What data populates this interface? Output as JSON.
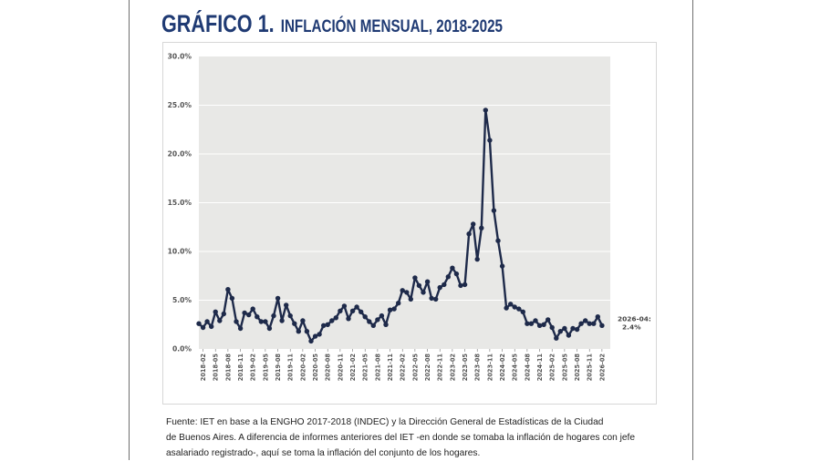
{
  "header": {
    "title_main": "GRÁFICO 1.",
    "title_sub": "INFLACIÓN MENSUAL, 2018-2025"
  },
  "colors": {
    "accent": "#1f3a73",
    "line": "#1e2a4a",
    "plot_background": "#e8e8e6",
    "grid": "#ffffff"
  },
  "chart_data": {
    "type": "line",
    "title": "INFLACIÓN MENSUAL, 2018-2025",
    "xlabel": "",
    "ylabel": "",
    "ylim": [
      0,
      30
    ],
    "y_ticks": [
      "0.0%",
      "5.0%",
      "10.0%",
      "15.0%",
      "20.0%",
      "25.0%",
      "30.0%"
    ],
    "y_tick_values": [
      0,
      5,
      10,
      15,
      20,
      25,
      30
    ],
    "grid": true,
    "x_tick_labels": [
      "2018-02",
      "2018-05",
      "2018-08",
      "2018-11",
      "2019-02",
      "2019-05",
      "2019-08",
      "2019-11",
      "2020-02",
      "2020-05",
      "2020-08",
      "2020-11",
      "2021-02",
      "2021-05",
      "2021-08",
      "2021-11",
      "2022-02",
      "2022-05",
      "2022-08",
      "2022-11",
      "2023-02",
      "2023-05",
      "2023-08",
      "2023-11",
      "2024-02",
      "2024-05",
      "2024-08",
      "2024-11",
      "2025-02",
      "2025-05",
      "2025-08",
      "2025-11",
      "2026-02"
    ],
    "x_start": "2018-01",
    "x_end": "2026-04",
    "series": [
      {
        "name": "",
        "values": [
          2.6,
          2.2,
          2.8,
          2.3,
          3.8,
          2.9,
          3.6,
          6.1,
          5.2,
          2.8,
          2.1,
          3.7,
          3.5,
          4.1,
          3.3,
          2.8,
          2.8,
          2.1,
          3.4,
          5.2,
          2.9,
          4.5,
          3.4,
          2.6,
          1.8,
          2.9,
          1.8,
          0.8,
          1.3,
          1.5,
          2.4,
          2.5,
          2.9,
          3.2,
          3.9,
          4.4,
          3.1,
          3.9,
          4.3,
          3.8,
          3.3,
          2.8,
          2.4,
          3.0,
          3.4,
          2.5,
          4.0,
          4.1,
          4.7,
          6.0,
          5.8,
          5.1,
          7.3,
          6.5,
          5.8,
          6.9,
          5.2,
          5.1,
          6.3,
          6.6,
          7.4,
          8.3,
          7.7,
          6.5,
          6.6,
          11.8,
          12.8,
          9.2,
          12.4,
          24.5,
          21.4,
          14.2,
          11.1,
          8.5,
          4.2,
          4.6,
          4.3,
          4.1,
          3.8,
          2.6,
          2.6,
          2.9,
          2.4,
          2.5,
          3.0,
          2.2,
          1.1,
          1.8,
          2.1,
          1.4,
          2.1,
          2.0,
          2.6,
          2.9,
          2.6,
          2.6,
          3.3,
          2.4
        ]
      }
    ],
    "annotations": [
      {
        "label_line1": "2026-04:",
        "label_line2": "2.4%",
        "x": "2026-04",
        "y": 2.4
      }
    ]
  },
  "source_note": {
    "line1": "Fuente: IET en base a la ENGHO 2017-2018 (INDEC) y la Dirección General de Estadísticas de la Ciudad",
    "line2": "de Buenos Aires. A diferencia de informes anteriores del IET -en donde se tomaba la inflación de hogares con jefe",
    "line3": "asalariado registrado-, aquí se toma la inflación del conjunto de los hogares."
  }
}
